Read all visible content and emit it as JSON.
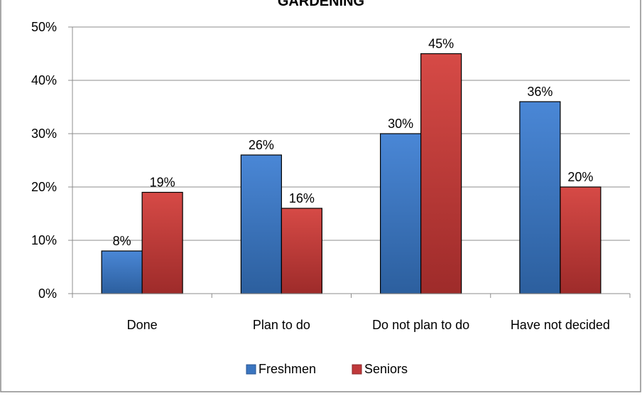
{
  "chart_data": {
    "type": "bar",
    "title": "GARDENING",
    "categories": [
      "Done",
      "Plan to do",
      "Do not plan to do",
      "Have not decided"
    ],
    "series": [
      {
        "name": "Freshmen",
        "values": [
          8,
          26,
          30,
          36
        ],
        "value_labels": [
          "8%",
          "26%",
          "30%",
          "36%"
        ],
        "color": "#3a75c0"
      },
      {
        "name": "Seniors",
        "values": [
          19,
          16,
          45,
          20
        ],
        "value_labels": [
          "19%",
          "16%",
          "45%",
          "20%"
        ],
        "color": "#c0393b"
      }
    ],
    "ylim": [
      0,
      50
    ],
    "y_ticks": [
      0,
      10,
      20,
      30,
      40,
      50
    ],
    "y_tick_labels": [
      "0%",
      "10%",
      "20%",
      "30%",
      "40%",
      "50%"
    ],
    "grid": true,
    "legend_position": "bottom"
  }
}
